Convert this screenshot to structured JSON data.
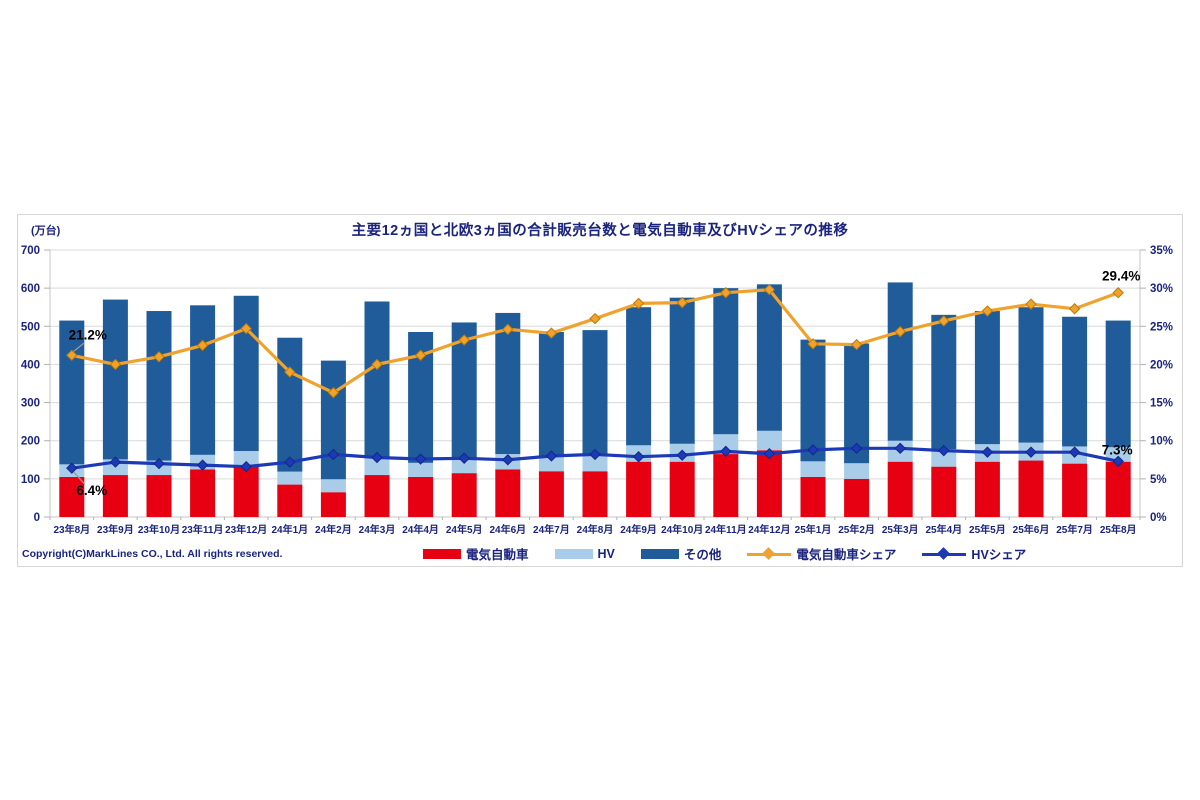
{
  "page": {
    "title": "主要12ヵ国と北欧3ヵ国の合計販売台数と電気自動車及びHVシェアの推移",
    "y_axis_unit": "(万台)",
    "copyright": "Copyright(C)MarkLines CO., Ltd. All rights reserved."
  },
  "colors": {
    "text_navy": "#1a237e",
    "ev_bar": "#e60012",
    "hv_bar": "#a9cce9",
    "other_bar": "#1f5c99",
    "ev_share_line": "#f0a22e",
    "hv_share_line": "#1c3ab5",
    "gridline": "#d9d9d9",
    "annotation": "#000000"
  },
  "legend": [
    {
      "key": "ev",
      "label": "電気自動車",
      "type": "bar",
      "color": "#e60012"
    },
    {
      "key": "hv",
      "label": "HV",
      "type": "bar",
      "color": "#a9cce9"
    },
    {
      "key": "other",
      "label": "その他",
      "type": "bar",
      "color": "#1f5c99"
    },
    {
      "key": "ev-share",
      "label": "電気自動車シェア",
      "type": "line",
      "color": "#f0a22e"
    },
    {
      "key": "hv-share",
      "label": "HVシェア",
      "type": "line",
      "color": "#1c3ab5"
    }
  ],
  "chart_data": {
    "type": "bar",
    "subtype": "stacked bars with two percentage lines on secondary axis",
    "title": "主要12ヵ国と北欧3ヵ国の合計販売台数と電気自動車及びHVシェアの推移",
    "categories": [
      "23年8月",
      "23年9月",
      "23年10月",
      "23年11月",
      "23年12月",
      "24年1月",
      "24年2月",
      "24年3月",
      "24年4月",
      "24年5月",
      "24年6月",
      "24年7月",
      "24年8月",
      "24年9月",
      "24年10月",
      "24年11月",
      "24年12月",
      "25年1月",
      "25年2月",
      "25年3月",
      "25年4月",
      "25年5月",
      "25年6月",
      "25年7月",
      "25年8月"
    ],
    "series": [
      {
        "name": "電気自動車",
        "type": "bar",
        "axis": "left",
        "color": "#e60012",
        "values": [
          105,
          110,
          110,
          125,
          135,
          85,
          65,
          110,
          105,
          115,
          125,
          120,
          120,
          145,
          145,
          165,
          175,
          105,
          100,
          145,
          132,
          145,
          148,
          140,
          145
        ]
      },
      {
        "name": "HV",
        "type": "bar",
        "axis": "left",
        "color": "#a9cce9",
        "values": [
          33,
          41,
          38,
          38,
          38,
          34,
          34,
          44,
          37,
          39,
          40,
          39,
          40,
          43,
          47,
          52,
          51,
          41,
          41,
          55,
          46,
          46,
          47,
          45,
          38
        ]
      },
      {
        "name": "その他",
        "type": "bar",
        "axis": "left",
        "color": "#1f5c99",
        "values": [
          377,
          419,
          392,
          392,
          407,
          351,
          311,
          411,
          343,
          356,
          370,
          326,
          330,
          362,
          383,
          383,
          384,
          319,
          314,
          415,
          352,
          349,
          355,
          340,
          332
        ]
      },
      {
        "name": "電気自動車シェア",
        "type": "line",
        "axis": "right",
        "color": "#f0a22e",
        "marker_border": "#c07b00",
        "values": [
          21.2,
          20.0,
          21.0,
          22.5,
          24.7,
          19.0,
          16.3,
          20.0,
          21.2,
          23.2,
          24.6,
          24.1,
          26.0,
          28.0,
          28.1,
          29.4,
          29.8,
          22.7,
          22.6,
          24.3,
          25.7,
          27.0,
          27.9,
          27.3,
          29.4
        ]
      },
      {
        "name": "HVシェア",
        "type": "line",
        "axis": "right",
        "color": "#1c3ab5",
        "marker_border": "#12278f",
        "values": [
          6.4,
          7.2,
          7.0,
          6.8,
          6.6,
          7.2,
          8.2,
          7.8,
          7.6,
          7.7,
          7.5,
          8.0,
          8.2,
          7.9,
          8.1,
          8.6,
          8.3,
          8.8,
          9.0,
          9.0,
          8.7,
          8.5,
          8.5,
          8.5,
          7.3
        ]
      }
    ],
    "left_axis": {
      "label": "(万台)",
      "min": 0,
      "max": 700,
      "ticks": [
        700,
        600,
        500,
        400,
        300,
        200,
        100,
        0
      ]
    },
    "right_axis": {
      "min": 0,
      "max": 35,
      "ticks": [
        35,
        30,
        25,
        20,
        15,
        10,
        5,
        0
      ],
      "suffix": "%"
    },
    "grid": "horizontal only",
    "legend_position": "bottom",
    "annotations": [
      {
        "text": "21.2%",
        "series": "電気自動車シェア",
        "point": "23年8月"
      },
      {
        "text": "6.4%",
        "series": "HVシェア",
        "point": "23年8月"
      },
      {
        "text": "29.4%",
        "series": "電気自動車シェア",
        "point": "25年8月"
      },
      {
        "text": "7.3%",
        "series": "HVシェア",
        "point": "25年8月"
      }
    ]
  }
}
